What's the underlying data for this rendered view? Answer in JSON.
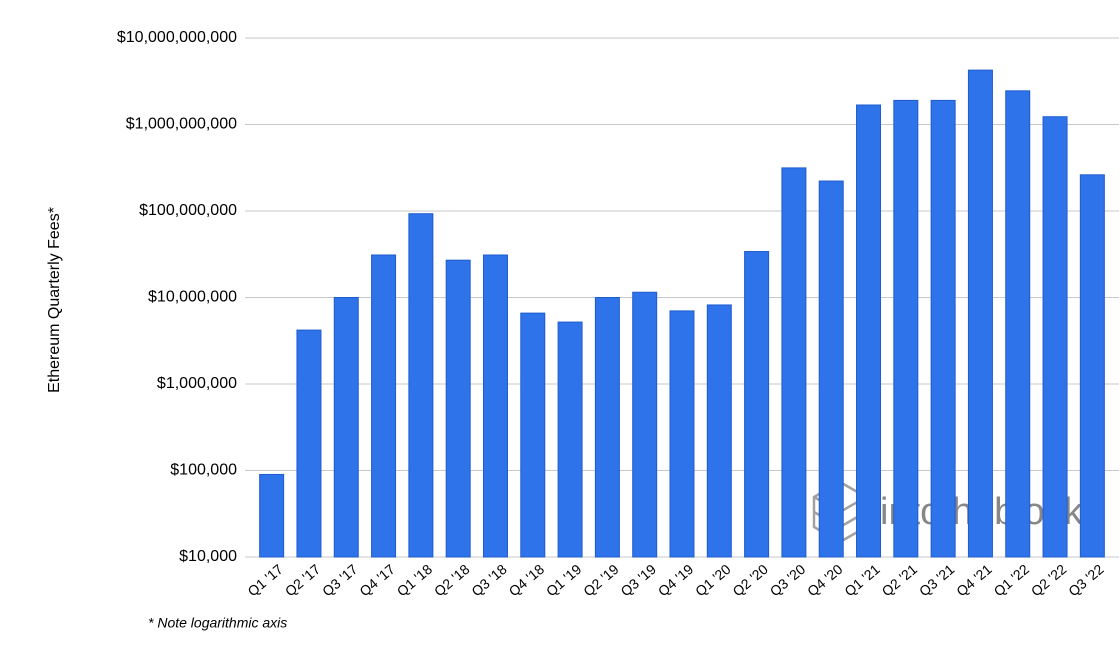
{
  "chart_data": {
    "type": "bar",
    "y_axis_label": "Ethereum Quarterly Fees*",
    "note": "* Note logarithmic axis",
    "watermark": "intotheblock",
    "categories": [
      "Q1 '17",
      "Q2 '17",
      "Q3 '17",
      "Q4 '17",
      "Q1 '18",
      "Q2 '18",
      "Q3 '18",
      "Q4 '18",
      "Q1 '19",
      "Q2 '19",
      "Q3 '19",
      "Q4 '19",
      "Q1 '20",
      "Q2 '20",
      "Q3 '20",
      "Q4 '20",
      "Q1 '21",
      "Q2 '21",
      "Q3 '21",
      "Q4 '21",
      "Q1 '22",
      "Q2 '22",
      "Q3 '22"
    ],
    "values": [
      90000,
      4200000,
      10000000,
      31000000,
      93000000,
      27000000,
      31000000,
      6600000,
      5200000,
      10000000,
      11500000,
      7000000,
      8200000,
      34000000,
      315000000,
      222000000,
      1680000000,
      1900000000,
      1900000000,
      4250000000,
      2450000000,
      1230000000,
      262000000
    ],
    "color": "#2f73eb",
    "log_scale": true,
    "grid": true,
    "ylim": [
      10000,
      10000000000
    ],
    "yticks": [
      {
        "value": 10000,
        "label": "$10,000"
      },
      {
        "value": 100000,
        "label": "$100,000"
      },
      {
        "value": 1000000,
        "label": "$1,000,000"
      },
      {
        "value": 10000000,
        "label": "$10,000,000"
      },
      {
        "value": 100000000,
        "label": "$100,000,000"
      },
      {
        "value": 1000000000,
        "label": "$1,000,000,000"
      },
      {
        "value": 10000000000,
        "label": "$10,000,000,000"
      }
    ]
  }
}
